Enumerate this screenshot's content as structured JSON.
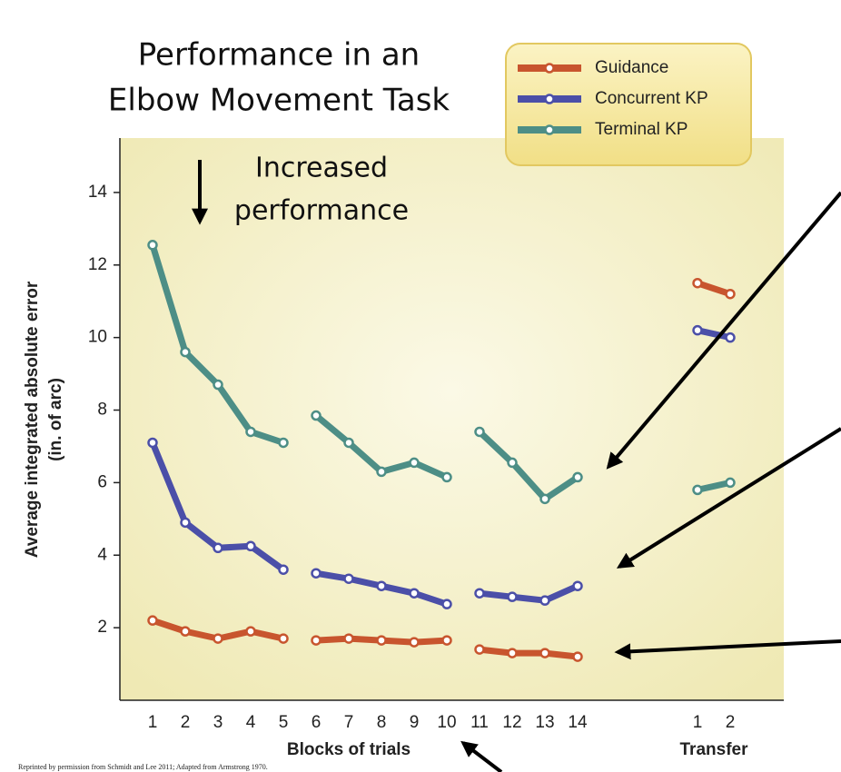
{
  "chart_data": {
    "type": "line",
    "title": [
      "Performance in an",
      "Elbow Movement Task"
    ],
    "annotation": [
      "Increased",
      "performance"
    ],
    "ylabel": [
      "Average integrated absolute error",
      "(in. of arc)"
    ],
    "xlabel": "Blocks of trials",
    "xlabel2": "Transfer",
    "note": "Reprinted by permission from Schmidt and Lee 2011; Adapted from Armstrong 1970.",
    "categories": [
      "1",
      "2",
      "3",
      "4",
      "5",
      null,
      "6",
      "7",
      "8",
      "9",
      "10",
      null,
      "11",
      "12",
      "13",
      "14",
      null,
      "1",
      "2"
    ],
    "series": [
      {
        "name": "Guidance",
        "color": "#c8552e",
        "values": [
          2.2,
          1.9,
          1.7,
          1.9,
          1.7,
          null,
          1.65,
          1.7,
          1.65,
          1.6,
          1.65,
          null,
          1.4,
          1.3,
          1.3,
          1.2,
          null,
          11.5,
          11.2
        ]
      },
      {
        "name": "Concurrent KP",
        "color": "#4b4fa8",
        "values": [
          7.1,
          4.9,
          4.2,
          4.25,
          3.6,
          null,
          3.5,
          3.35,
          3.15,
          2.95,
          2.65,
          null,
          2.95,
          2.85,
          2.75,
          3.15,
          null,
          10.2,
          10.0
        ]
      },
      {
        "name": "Terminal KP",
        "color": "#4d8e86",
        "values": [
          12.55,
          9.6,
          8.7,
          7.4,
          7.1,
          null,
          7.85,
          7.1,
          6.3,
          6.55,
          6.15,
          null,
          7.4,
          6.55,
          5.55,
          6.15,
          null,
          5.8,
          6.0
        ]
      }
    ],
    "ylim": [
      0,
      15.5
    ],
    "yticks": [
      2,
      4,
      6,
      8,
      10,
      12,
      14
    ],
    "grid": false
  }
}
